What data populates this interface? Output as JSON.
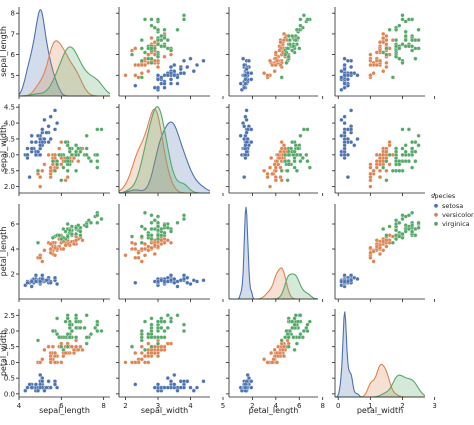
{
  "chart_data": {
    "type": "scatter",
    "variables": [
      "sepal_length",
      "sepal_width",
      "petal_length",
      "petal_width"
    ],
    "axis_labels": {
      "sepal_length": "sepal_length",
      "sepal_width": "sepal_width",
      "petal_length": "petal_length",
      "petal_width": "petal_width"
    },
    "ranges": {
      "sepal_length": [
        4.0,
        8.3
      ],
      "sepal_width": [
        1.8,
        4.6
      ],
      "petal_length": [
        0.0,
        7.6
      ],
      "petal_width": [
        -0.1,
        2.7
      ]
    },
    "ticks": {
      "sepal_length": [
        4,
        6,
        8
      ],
      "sepal_width": [
        2,
        3,
        4,
        5
      ],
      "petal_length": [
        2,
        4,
        6,
        8
      ],
      "petal_width": [
        0,
        1,
        2,
        3
      ]
    },
    "yticks": {
      "sepal_length": [
        5,
        6,
        7,
        8
      ],
      "sepal_width": [
        2.0,
        2.5,
        3.0,
        3.5,
        4.0,
        4.5
      ],
      "petal_length": [
        2,
        4,
        6
      ],
      "petal_width": [
        0.0,
        0.5,
        1.0,
        1.5,
        2.0,
        2.5
      ]
    },
    "diagonal": "kde",
    "legend": {
      "title": "species",
      "placement": "center-right",
      "entries": [
        "setosa",
        "versicolor",
        "virginica"
      ]
    },
    "colors": {
      "setosa": "#4c72b0",
      "versicolor": "#dd8452",
      "virginica": "#55a868"
    },
    "series": [
      {
        "name": "setosa",
        "sepal_length": [
          5.1,
          4.9,
          4.7,
          4.6,
          5.0,
          5.4,
          4.6,
          5.0,
          4.4,
          4.9,
          5.4,
          4.8,
          4.8,
          4.3,
          5.8,
          5.7,
          5.4,
          5.1,
          5.7,
          5.1,
          5.4,
          5.1,
          4.6,
          5.1,
          4.8,
          5.0,
          5.0,
          5.2,
          5.2,
          4.7,
          4.8,
          5.4,
          5.2,
          5.5,
          4.9,
          5.0,
          5.5,
          4.9,
          4.4,
          5.1,
          5.0,
          4.5,
          4.4,
          5.0,
          5.1,
          4.8,
          5.1,
          4.6,
          5.3,
          5.0
        ],
        "sepal_width": [
          3.5,
          3.0,
          3.2,
          3.1,
          3.6,
          3.9,
          3.4,
          3.4,
          2.9,
          3.1,
          3.7,
          3.4,
          3.0,
          3.0,
          4.0,
          4.4,
          3.9,
          3.5,
          3.8,
          3.8,
          3.4,
          3.7,
          3.6,
          3.3,
          3.4,
          3.0,
          3.4,
          3.5,
          3.4,
          3.2,
          3.1,
          3.4,
          4.1,
          4.2,
          3.1,
          3.2,
          3.5,
          3.6,
          3.0,
          3.4,
          3.5,
          2.3,
          3.2,
          3.5,
          3.8,
          3.0,
          3.8,
          3.2,
          3.7,
          3.3
        ],
        "petal_length": [
          1.4,
          1.4,
          1.3,
          1.5,
          1.4,
          1.7,
          1.4,
          1.5,
          1.4,
          1.5,
          1.5,
          1.6,
          1.4,
          1.1,
          1.2,
          1.5,
          1.3,
          1.4,
          1.7,
          1.5,
          1.7,
          1.5,
          1.0,
          1.7,
          1.9,
          1.6,
          1.6,
          1.5,
          1.4,
          1.6,
          1.6,
          1.5,
          1.5,
          1.4,
          1.5,
          1.2,
          1.3,
          1.4,
          1.3,
          1.5,
          1.3,
          1.3,
          1.3,
          1.6,
          1.9,
          1.4,
          1.6,
          1.4,
          1.5,
          1.4
        ],
        "petal_width": [
          0.2,
          0.2,
          0.2,
          0.2,
          0.2,
          0.4,
          0.3,
          0.2,
          0.2,
          0.1,
          0.2,
          0.2,
          0.1,
          0.1,
          0.2,
          0.4,
          0.4,
          0.3,
          0.3,
          0.3,
          0.2,
          0.4,
          0.2,
          0.5,
          0.2,
          0.2,
          0.4,
          0.2,
          0.2,
          0.2,
          0.2,
          0.4,
          0.1,
          0.2,
          0.2,
          0.2,
          0.2,
          0.1,
          0.2,
          0.2,
          0.3,
          0.3,
          0.2,
          0.6,
          0.4,
          0.3,
          0.2,
          0.2,
          0.2,
          0.2
        ]
      },
      {
        "name": "versicolor",
        "sepal_length": [
          7.0,
          6.4,
          6.9,
          5.5,
          6.5,
          5.7,
          6.3,
          4.9,
          6.6,
          5.2,
          5.0,
          5.9,
          6.0,
          6.1,
          5.6,
          6.7,
          5.6,
          5.8,
          6.2,
          5.6,
          5.9,
          6.1,
          6.3,
          6.1,
          6.4,
          6.6,
          6.8,
          6.7,
          6.0,
          5.7,
          5.5,
          5.5,
          5.8,
          6.0,
          5.4,
          6.0,
          6.7,
          6.3,
          5.6,
          5.5,
          5.5,
          6.1,
          5.8,
          5.0,
          5.6,
          5.7,
          5.7,
          6.2,
          5.1,
          5.7
        ],
        "sepal_width": [
          3.2,
          3.2,
          3.1,
          2.3,
          2.8,
          2.8,
          3.3,
          2.4,
          2.9,
          2.7,
          2.0,
          3.0,
          2.2,
          2.9,
          2.9,
          3.1,
          3.0,
          2.7,
          2.2,
          2.5,
          3.2,
          2.8,
          2.5,
          2.8,
          2.9,
          3.0,
          2.8,
          3.0,
          2.9,
          2.6,
          2.4,
          2.4,
          2.7,
          2.7,
          3.0,
          3.4,
          3.1,
          2.3,
          3.0,
          2.5,
          2.6,
          3.0,
          2.6,
          2.3,
          2.7,
          3.0,
          2.9,
          2.9,
          2.5,
          2.8
        ],
        "petal_length": [
          4.7,
          4.5,
          4.9,
          4.0,
          4.6,
          4.5,
          4.7,
          3.3,
          4.6,
          3.9,
          3.5,
          4.2,
          4.0,
          4.7,
          3.6,
          4.4,
          4.5,
          4.1,
          4.5,
          3.9,
          4.8,
          4.0,
          4.9,
          4.7,
          4.3,
          4.4,
          4.8,
          5.0,
          4.5,
          3.5,
          3.8,
          3.7,
          3.9,
          5.1,
          4.5,
          4.5,
          4.7,
          4.4,
          4.1,
          4.0,
          4.4,
          4.6,
          4.0,
          3.3,
          4.2,
          4.2,
          4.2,
          4.3,
          3.0,
          4.1
        ],
        "petal_width": [
          1.4,
          1.5,
          1.5,
          1.3,
          1.5,
          1.3,
          1.6,
          1.0,
          1.3,
          1.4,
          1.0,
          1.5,
          1.0,
          1.4,
          1.3,
          1.4,
          1.5,
          1.0,
          1.5,
          1.1,
          1.8,
          1.3,
          1.5,
          1.2,
          1.3,
          1.4,
          1.4,
          1.7,
          1.5,
          1.0,
          1.1,
          1.0,
          1.2,
          1.6,
          1.5,
          1.6,
          1.5,
          1.3,
          1.3,
          1.3,
          1.2,
          1.4,
          1.2,
          1.0,
          1.3,
          1.2,
          1.3,
          1.3,
          1.1,
          1.3
        ]
      },
      {
        "name": "virginica",
        "sepal_length": [
          6.3,
          5.8,
          7.1,
          6.3,
          6.5,
          7.6,
          4.9,
          7.3,
          6.7,
          7.2,
          6.5,
          6.4,
          6.8,
          5.7,
          5.8,
          6.4,
          6.5,
          7.7,
          7.7,
          6.0,
          6.9,
          5.6,
          7.7,
          6.3,
          6.7,
          7.2,
          6.2,
          6.1,
          6.4,
          7.2,
          7.4,
          7.9,
          6.4,
          6.3,
          6.1,
          7.7,
          6.3,
          6.4,
          6.0,
          6.9,
          6.7,
          6.9,
          5.8,
          6.8,
          6.7,
          6.7,
          6.3,
          6.5,
          6.2,
          5.9
        ],
        "sepal_width": [
          3.3,
          2.7,
          3.0,
          2.9,
          3.0,
          3.0,
          2.5,
          2.9,
          2.5,
          3.6,
          3.2,
          2.7,
          3.0,
          2.5,
          2.8,
          3.2,
          3.0,
          3.8,
          2.6,
          2.2,
          3.2,
          2.8,
          2.8,
          2.7,
          3.3,
          3.2,
          2.8,
          3.0,
          2.8,
          3.0,
          2.8,
          3.8,
          2.8,
          2.8,
          2.6,
          3.0,
          3.4,
          3.1,
          3.0,
          3.1,
          3.1,
          3.1,
          2.7,
          3.2,
          3.3,
          3.0,
          2.5,
          3.0,
          3.4,
          3.0
        ],
        "petal_length": [
          6.0,
          5.1,
          5.9,
          5.6,
          5.8,
          6.6,
          4.5,
          6.3,
          5.8,
          6.1,
          5.1,
          5.3,
          5.5,
          5.0,
          5.1,
          5.3,
          5.5,
          6.7,
          6.9,
          5.0,
          5.7,
          4.9,
          6.7,
          4.9,
          5.7,
          6.0,
          4.8,
          4.9,
          5.6,
          5.8,
          6.1,
          6.4,
          5.6,
          5.1,
          5.6,
          6.1,
          5.6,
          5.5,
          4.8,
          5.4,
          5.6,
          5.1,
          5.1,
          5.9,
          5.7,
          5.2,
          5.0,
          5.2,
          5.4,
          5.1
        ],
        "petal_width": [
          2.5,
          1.9,
          2.1,
          1.8,
          2.2,
          2.1,
          1.7,
          1.8,
          1.8,
          2.5,
          2.0,
          1.9,
          2.1,
          2.0,
          2.4,
          2.3,
          1.8,
          2.2,
          2.3,
          1.5,
          2.3,
          2.0,
          2.0,
          1.8,
          2.1,
          1.8,
          1.8,
          1.8,
          2.1,
          1.6,
          1.9,
          2.0,
          2.2,
          1.5,
          1.4,
          2.3,
          2.4,
          1.8,
          1.8,
          2.1,
          2.4,
          2.3,
          1.9,
          2.3,
          2.5,
          2.3,
          1.9,
          2.0,
          2.3,
          1.8
        ]
      }
    ]
  }
}
